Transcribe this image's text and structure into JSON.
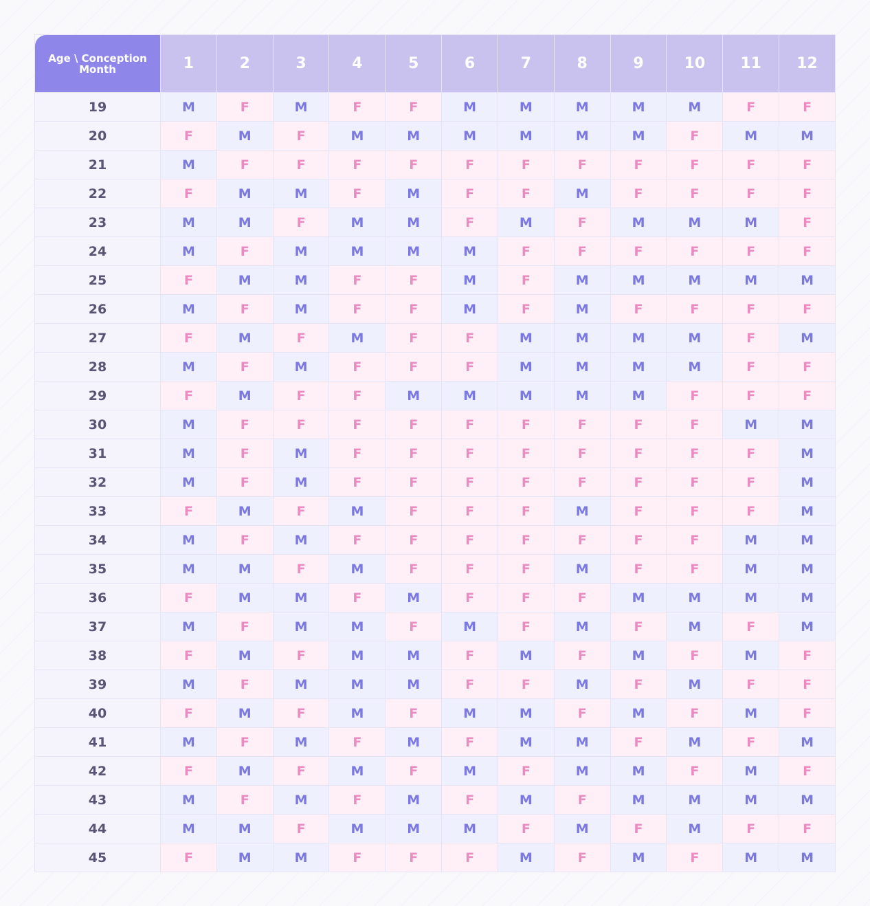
{
  "table": {
    "corner_label": "Age \\ Conception Month",
    "months": [
      "1",
      "2",
      "3",
      "4",
      "5",
      "6",
      "7",
      "8",
      "9",
      "10",
      "11",
      "12"
    ],
    "colors": {
      "header_corner": "#8e86e8",
      "header": "#c9c1ee",
      "male_bg": "#eef0fd",
      "male_text": "#7b78e0",
      "female_bg": "#fff0f7",
      "female_text": "#e98cc0"
    },
    "rows": [
      {
        "age": "19",
        "values": [
          "M",
          "F",
          "M",
          "F",
          "F",
          "M",
          "M",
          "M",
          "M",
          "M",
          "F",
          "F"
        ]
      },
      {
        "age": "20",
        "values": [
          "F",
          "M",
          "F",
          "M",
          "M",
          "M",
          "M",
          "M",
          "M",
          "F",
          "M",
          "M"
        ]
      },
      {
        "age": "21",
        "values": [
          "M",
          "F",
          "F",
          "F",
          "F",
          "F",
          "F",
          "F",
          "F",
          "F",
          "F",
          "F"
        ]
      },
      {
        "age": "22",
        "values": [
          "F",
          "M",
          "M",
          "F",
          "M",
          "F",
          "F",
          "M",
          "F",
          "F",
          "F",
          "F"
        ]
      },
      {
        "age": "23",
        "values": [
          "M",
          "M",
          "F",
          "M",
          "M",
          "F",
          "M",
          "F",
          "M",
          "M",
          "M",
          "F"
        ]
      },
      {
        "age": "24",
        "values": [
          "M",
          "F",
          "M",
          "M",
          "M",
          "M",
          "F",
          "F",
          "F",
          "F",
          "F",
          "F"
        ]
      },
      {
        "age": "25",
        "values": [
          "F",
          "M",
          "M",
          "F",
          "F",
          "M",
          "F",
          "M",
          "M",
          "M",
          "M",
          "M"
        ]
      },
      {
        "age": "26",
        "values": [
          "M",
          "F",
          "M",
          "F",
          "F",
          "M",
          "F",
          "M",
          "F",
          "F",
          "F",
          "F"
        ]
      },
      {
        "age": "27",
        "values": [
          "F",
          "M",
          "F",
          "M",
          "F",
          "F",
          "M",
          "M",
          "M",
          "M",
          "F",
          "M"
        ]
      },
      {
        "age": "28",
        "values": [
          "M",
          "F",
          "M",
          "F",
          "F",
          "F",
          "M",
          "M",
          "M",
          "M",
          "F",
          "F"
        ]
      },
      {
        "age": "29",
        "values": [
          "F",
          "M",
          "F",
          "F",
          "M",
          "M",
          "M",
          "M",
          "M",
          "F",
          "F",
          "F"
        ]
      },
      {
        "age": "30",
        "values": [
          "M",
          "F",
          "F",
          "F",
          "F",
          "F",
          "F",
          "F",
          "F",
          "F",
          "M",
          "M"
        ]
      },
      {
        "age": "31",
        "values": [
          "M",
          "F",
          "M",
          "F",
          "F",
          "F",
          "F",
          "F",
          "F",
          "F",
          "F",
          "M"
        ]
      },
      {
        "age": "32",
        "values": [
          "M",
          "F",
          "M",
          "F",
          "F",
          "F",
          "F",
          "F",
          "F",
          "F",
          "F",
          "M"
        ]
      },
      {
        "age": "33",
        "values": [
          "F",
          "M",
          "F",
          "M",
          "F",
          "F",
          "F",
          "M",
          "F",
          "F",
          "F",
          "M"
        ]
      },
      {
        "age": "34",
        "values": [
          "M",
          "F",
          "M",
          "F",
          "F",
          "F",
          "F",
          "F",
          "F",
          "F",
          "M",
          "M"
        ]
      },
      {
        "age": "35",
        "values": [
          "M",
          "M",
          "F",
          "M",
          "F",
          "F",
          "F",
          "M",
          "F",
          "F",
          "M",
          "M"
        ]
      },
      {
        "age": "36",
        "values": [
          "F",
          "M",
          "M",
          "F",
          "M",
          "F",
          "F",
          "F",
          "M",
          "M",
          "M",
          "M"
        ]
      },
      {
        "age": "37",
        "values": [
          "M",
          "F",
          "M",
          "M",
          "F",
          "M",
          "F",
          "M",
          "F",
          "M",
          "F",
          "M"
        ]
      },
      {
        "age": "38",
        "values": [
          "F",
          "M",
          "F",
          "M",
          "M",
          "F",
          "M",
          "F",
          "M",
          "F",
          "M",
          "F"
        ]
      },
      {
        "age": "39",
        "values": [
          "M",
          "F",
          "M",
          "M",
          "M",
          "F",
          "F",
          "M",
          "F",
          "M",
          "F",
          "F"
        ]
      },
      {
        "age": "40",
        "values": [
          "F",
          "M",
          "F",
          "M",
          "F",
          "M",
          "M",
          "F",
          "M",
          "F",
          "M",
          "F"
        ]
      },
      {
        "age": "41",
        "values": [
          "M",
          "F",
          "M",
          "F",
          "M",
          "F",
          "M",
          "M",
          "F",
          "M",
          "F",
          "M"
        ]
      },
      {
        "age": "42",
        "values": [
          "F",
          "M",
          "F",
          "M",
          "F",
          "M",
          "F",
          "M",
          "M",
          "F",
          "M",
          "F"
        ]
      },
      {
        "age": "43",
        "values": [
          "M",
          "F",
          "M",
          "F",
          "M",
          "F",
          "M",
          "F",
          "M",
          "M",
          "M",
          "M"
        ]
      },
      {
        "age": "44",
        "values": [
          "M",
          "M",
          "F",
          "M",
          "M",
          "M",
          "F",
          "M",
          "F",
          "M",
          "F",
          "F"
        ]
      },
      {
        "age": "45",
        "values": [
          "F",
          "M",
          "M",
          "F",
          "F",
          "F",
          "M",
          "F",
          "M",
          "F",
          "M",
          "M"
        ]
      }
    ]
  }
}
